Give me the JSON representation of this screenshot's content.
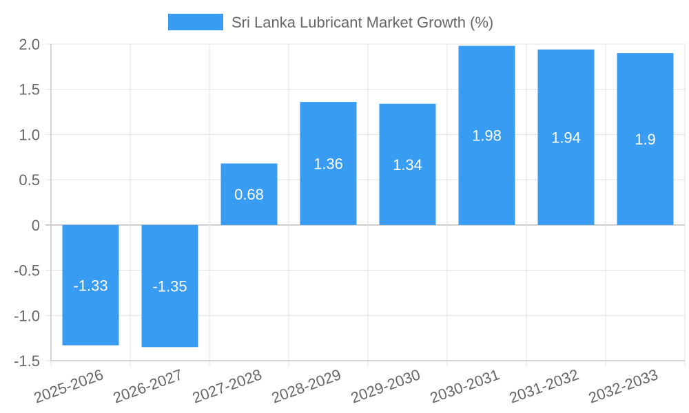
{
  "chart_data": {
    "type": "bar",
    "title": "",
    "xlabel": "",
    "ylabel": "",
    "categories": [
      "2025-2026",
      "2026-2027",
      "2027-2028",
      "2028-2029",
      "2029-2030",
      "2030-2031",
      "2031-2032",
      "2032-2033"
    ],
    "series": [
      {
        "name": "Sri Lanka Lubricant Market Growth (%)",
        "values": [
          -1.33,
          -1.35,
          0.68,
          1.36,
          1.34,
          1.98,
          1.94,
          1.9
        ],
        "color": "#379CF2"
      }
    ],
    "y_ticks": [
      "2.0",
      "1.5",
      "1.0",
      "0.5",
      "0",
      "-0.5",
      "-1.0",
      "-1.5"
    ],
    "y_tick_values": [
      2.0,
      1.5,
      1.0,
      0.5,
      0,
      -0.5,
      -1.0,
      -1.5
    ],
    "ylim": [
      -1.5,
      2.0
    ],
    "grid": true,
    "legend_position": "top-center",
    "data_labels": [
      "-1.33",
      "-1.35",
      "0.68",
      "1.36",
      "1.34",
      "1.98",
      "1.94",
      "1.9"
    ],
    "colors": {
      "bar": "#379CF2",
      "grid": "#e0e0e0",
      "axis": "#c8c8c8",
      "text": "#666666",
      "label": "#ffffff"
    }
  }
}
